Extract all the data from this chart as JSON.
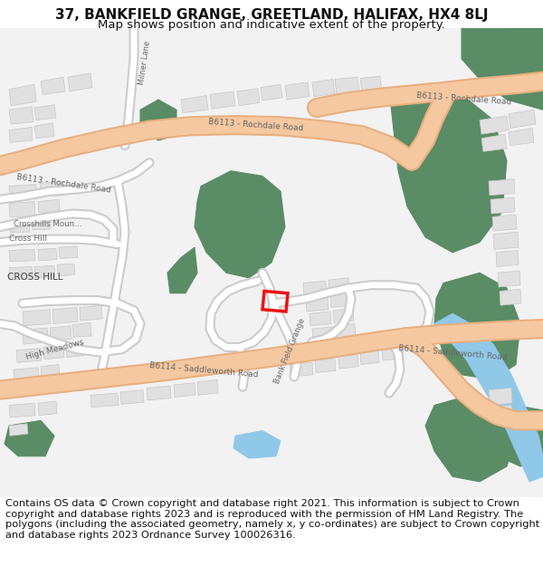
{
  "title": "37, BANKFIELD GRANGE, GREETLAND, HALIFAX, HX4 8LJ",
  "subtitle": "Map shows position and indicative extent of the property.",
  "footer": "Contains OS data © Crown copyright and database right 2021. This information is subject to Crown copyright and database rights 2023 and is reproduced with the permission of HM Land Registry. The polygons (including the associated geometry, namely x, y co-ordinates) are subject to Crown copyright and database rights 2023 Ordnance Survey 100026316.",
  "background_color": "#ffffff",
  "map_bg_color": "#f2f2f2",
  "road_color": "#f5c8a0",
  "road_outline_color": "#e8b080",
  "green_color": "#5a8c65",
  "water_color": "#90c8e8",
  "building_color": "#e0e0e0",
  "building_outline": "#c8c8c8",
  "plot_color": "#ee1111",
  "road_label_color": "#666666",
  "title_fontsize": 11,
  "subtitle_fontsize": 9.5,
  "footer_fontsize": 8.2
}
